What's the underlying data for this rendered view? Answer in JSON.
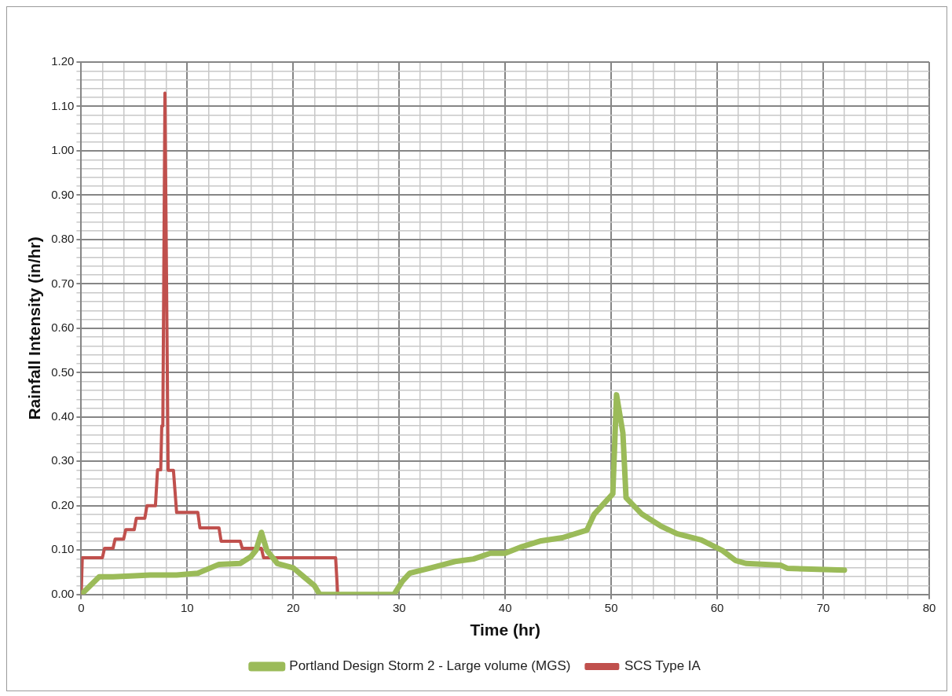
{
  "chart_data": {
    "type": "line",
    "xlabel": "Time (hr)",
    "ylabel": "Rainfall Intensity (in/hr)",
    "xlim": [
      0,
      80
    ],
    "ylim": [
      0,
      1.2
    ],
    "xticks": [
      0,
      {
        "value": 2,
        "label": null
      },
      {
        "value": 4,
        "label": null
      },
      {
        "value": 6,
        "label": null
      },
      {
        "value": 8,
        "label": null
      },
      10,
      {
        "value": 12,
        "label": null
      },
      {
        "value": 14,
        "label": null
      },
      {
        "value": 16,
        "label": null
      },
      {
        "value": 18,
        "label": null
      },
      20,
      {
        "value": 22,
        "label": null
      },
      {
        "value": 24,
        "label": null
      },
      {
        "value": 26,
        "label": null
      },
      {
        "value": 28,
        "label": null
      },
      30,
      {
        "value": 32,
        "label": null
      },
      {
        "value": 34,
        "label": null
      },
      {
        "value": 36,
        "label": null
      },
      {
        "value": 38,
        "label": null
      },
      40,
      {
        "value": 42,
        "label": null
      },
      {
        "value": 44,
        "label": null
      },
      {
        "value": 46,
        "label": null
      },
      {
        "value": 48,
        "label": null
      },
      50,
      {
        "value": 52,
        "label": null
      },
      {
        "value": 54,
        "label": null
      },
      {
        "value": 56,
        "label": null
      },
      {
        "value": 58,
        "label": null
      },
      60,
      {
        "value": 62,
        "label": null
      },
      {
        "value": 64,
        "label": null
      },
      {
        "value": 66,
        "label": null
      },
      {
        "value": 68,
        "label": null
      },
      70,
      {
        "value": 72,
        "label": null
      },
      {
        "value": 74,
        "label": null
      },
      {
        "value": 76,
        "label": null
      },
      {
        "value": 78,
        "label": null
      },
      80
    ],
    "yticks": [
      {
        "value": 0,
        "label": "0.00"
      },
      {
        "value": 0.02,
        "label": null
      },
      {
        "value": 0.04,
        "label": null
      },
      {
        "value": 0.06,
        "label": null
      },
      {
        "value": 0.08,
        "label": null
      },
      {
        "value": 0.1,
        "label": "0.10"
      },
      {
        "value": 0.12,
        "label": null
      },
      {
        "value": 0.14,
        "label": null
      },
      {
        "value": 0.16,
        "label": null
      },
      {
        "value": 0.18,
        "label": null
      },
      {
        "value": 0.2,
        "label": "0.20"
      },
      {
        "value": 0.22,
        "label": null
      },
      {
        "value": 0.24,
        "label": null
      },
      {
        "value": 0.26,
        "label": null
      },
      {
        "value": 0.28,
        "label": null
      },
      {
        "value": 0.3,
        "label": "0.30"
      },
      {
        "value": 0.32,
        "label": null
      },
      {
        "value": 0.34,
        "label": null
      },
      {
        "value": 0.36,
        "label": null
      },
      {
        "value": 0.38,
        "label": null
      },
      {
        "value": 0.4,
        "label": "0.40"
      },
      {
        "value": 0.42,
        "label": null
      },
      {
        "value": 0.44,
        "label": null
      },
      {
        "value": 0.46,
        "label": null
      },
      {
        "value": 0.48,
        "label": null
      },
      {
        "value": 0.5,
        "label": "0.50"
      },
      {
        "value": 0.52,
        "label": null
      },
      {
        "value": 0.54,
        "label": null
      },
      {
        "value": 0.56,
        "label": null
      },
      {
        "value": 0.58,
        "label": null
      },
      {
        "value": 0.6,
        "label": "0.60"
      },
      {
        "value": 0.62,
        "label": null
      },
      {
        "value": 0.64,
        "label": null
      },
      {
        "value": 0.66,
        "label": null
      },
      {
        "value": 0.68,
        "label": null
      },
      {
        "value": 0.7,
        "label": "0.70"
      },
      {
        "value": 0.72,
        "label": null
      },
      {
        "value": 0.74,
        "label": null
      },
      {
        "value": 0.76,
        "label": null
      },
      {
        "value": 0.78,
        "label": null
      },
      {
        "value": 0.8,
        "label": "0.80"
      },
      {
        "value": 0.82,
        "label": null
      },
      {
        "value": 0.84,
        "label": null
      },
      {
        "value": 0.86,
        "label": null
      },
      {
        "value": 0.88,
        "label": null
      },
      {
        "value": 0.9,
        "label": "0.90"
      },
      {
        "value": 0.92,
        "label": null
      },
      {
        "value": 0.94,
        "label": null
      },
      {
        "value": 0.96,
        "label": null
      },
      {
        "value": 0.98,
        "label": null
      },
      {
        "value": 1.0,
        "label": "1.00"
      },
      {
        "value": 1.02,
        "label": null
      },
      {
        "value": 1.04,
        "label": null
      },
      {
        "value": 1.06,
        "label": null
      },
      {
        "value": 1.08,
        "label": null
      },
      {
        "value": 1.1,
        "label": "1.10"
      },
      {
        "value": 1.12,
        "label": null
      },
      {
        "value": 1.14,
        "label": null
      },
      {
        "value": 1.16,
        "label": null
      },
      {
        "value": 1.18,
        "label": null
      },
      {
        "value": 1.2,
        "label": "1.20"
      }
    ],
    "grid": true,
    "legend": "bottom",
    "marker": "none",
    "line_style": "solid",
    "series": [
      {
        "name": "Portland Design Storm 2 - Large volume (MGS)",
        "color": "#9bbb59",
        "x": [
          0,
          1.7,
          3,
          5,
          6.5,
          9,
          11,
          13,
          15,
          16,
          16.5,
          17,
          17.5,
          18.5,
          20,
          21,
          22,
          22.5,
          29.5,
          30.3,
          31,
          33,
          35.4,
          37,
          38.6,
          40,
          41.6,
          43.4,
          45.4,
          47.7,
          48.4,
          50.15,
          50.5,
          51.1,
          51.4,
          52.9,
          54.7,
          56.2,
          58.5,
          60.5,
          61.7,
          62.7,
          66,
          66.6,
          72
        ],
        "values": [
          0,
          0.04,
          0.04,
          0.042,
          0.044,
          0.044,
          0.048,
          0.068,
          0.07,
          0.085,
          0.1,
          0.14,
          0.1,
          0.07,
          0.06,
          0.04,
          0.02,
          0,
          0,
          0.03,
          0.048,
          0.06,
          0.075,
          0.08,
          0.093,
          0.093,
          0.108,
          0.121,
          0.128,
          0.145,
          0.181,
          0.227,
          0.45,
          0.364,
          0.218,
          0.181,
          0.154,
          0.137,
          0.123,
          0.099,
          0.077,
          0.07,
          0.066,
          0.059,
          0.055
        ]
      },
      {
        "name": "SCS Type IA",
        "color": "#c0504d",
        "x": [
          0,
          0.1,
          2,
          2.2,
          3,
          3.2,
          4,
          4.2,
          5,
          5.2,
          6,
          6.2,
          7,
          7.2,
          7.5,
          7.6,
          7.7,
          7.9,
          8.2,
          8.7,
          9,
          11,
          11.2,
          13,
          13.2,
          15,
          15.2,
          17,
          17.2,
          24,
          24.2
        ],
        "values": [
          0,
          0.083,
          0.083,
          0.104,
          0.104,
          0.125,
          0.125,
          0.146,
          0.146,
          0.172,
          0.172,
          0.2,
          0.2,
          0.281,
          0.281,
          0.38,
          0.38,
          1.13,
          0.28,
          0.28,
          0.185,
          0.185,
          0.15,
          0.15,
          0.12,
          0.12,
          0.104,
          0.104,
          0.083,
          0.083,
          0
        ]
      }
    ]
  }
}
